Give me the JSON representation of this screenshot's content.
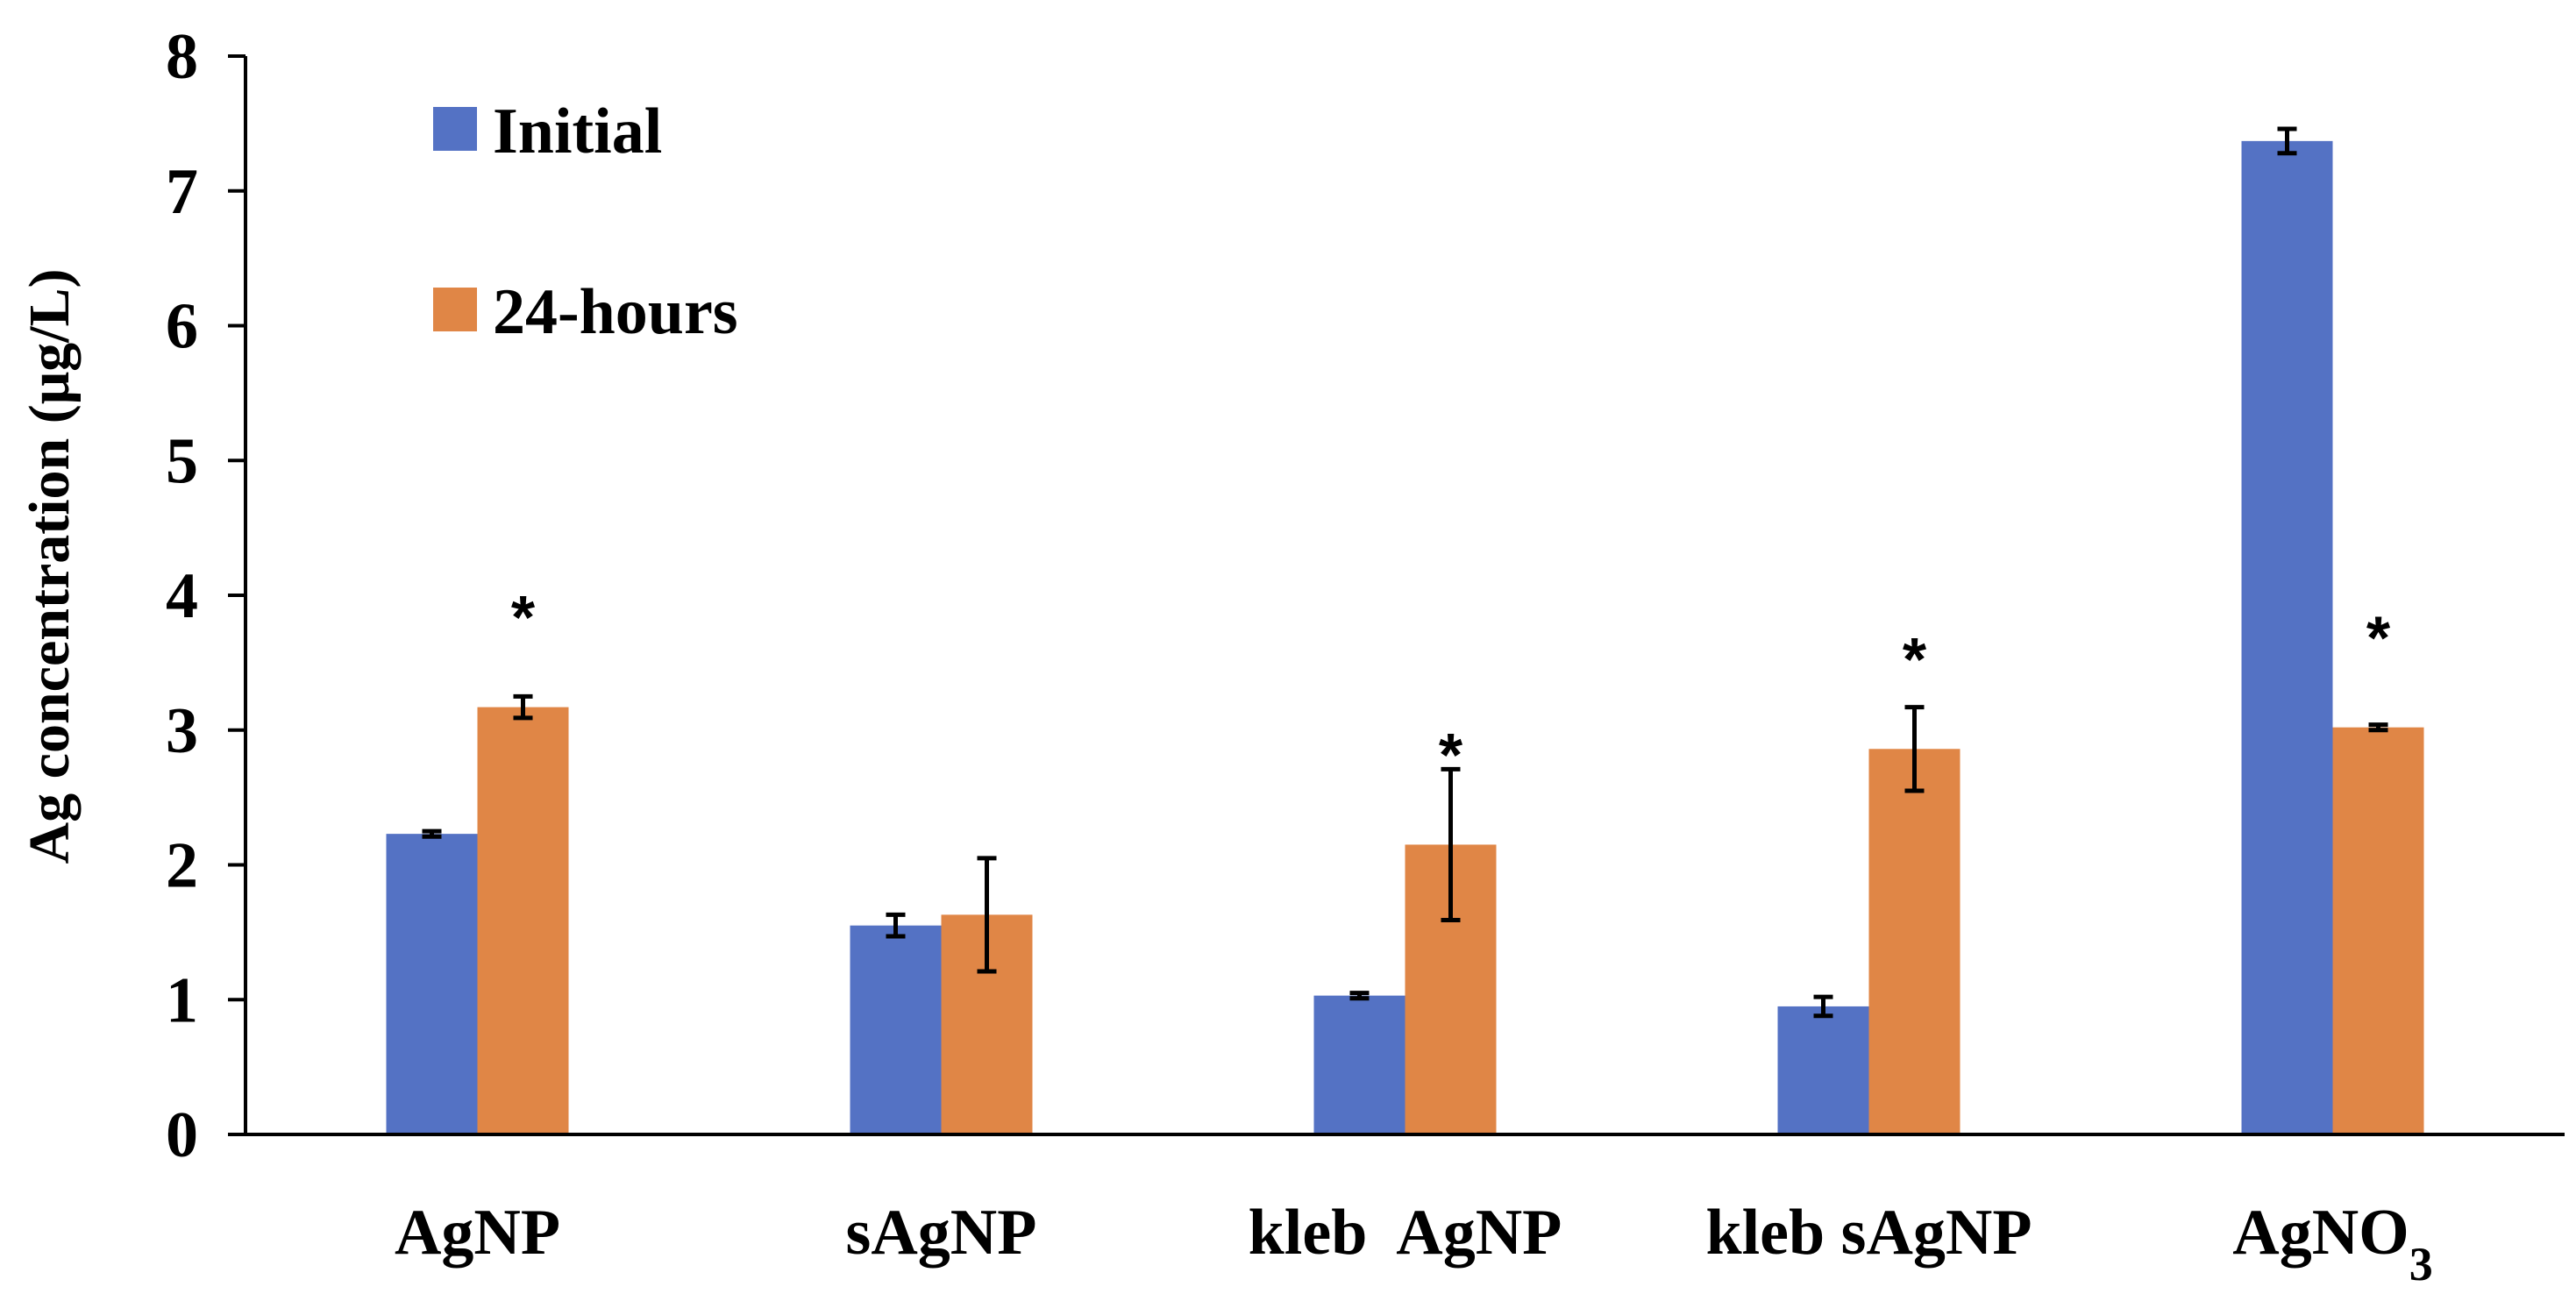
{
  "chart_data": {
    "type": "bar",
    "title": "",
    "xlabel": "",
    "ylabel": "Ag concentration (μg/L)",
    "ylim": [
      0,
      8
    ],
    "yticks": [
      0,
      1,
      2,
      3,
      4,
      5,
      6,
      7,
      8
    ],
    "grid": false,
    "legend": "top-left",
    "categories": [
      {
        "label": "AgNP",
        "subscript": ""
      },
      {
        "label": "sAgNP",
        "subscript": ""
      },
      {
        "label": "kleb  AgNP",
        "subscript": ""
      },
      {
        "label": "kleb sAgNP",
        "subscript": ""
      },
      {
        "label": "AgNO",
        "subscript": "3"
      }
    ],
    "series": [
      {
        "name": "Initial",
        "color": "#5472c4",
        "values": [
          2.23,
          1.55,
          1.03,
          0.95,
          7.37
        ],
        "errors": [
          0.02,
          0.08,
          0.02,
          0.07,
          0.09
        ]
      },
      {
        "name": "24-hours",
        "color": "#e08646",
        "values": [
          3.17,
          1.63,
          2.15,
          2.86,
          3.02
        ],
        "errors": [
          0.08,
          0.42,
          0.56,
          0.31,
          0.02
        ]
      }
    ],
    "annotations": [
      {
        "category": 0,
        "series": 1,
        "text": "*"
      },
      {
        "category": 2,
        "series": 1,
        "text": "*"
      },
      {
        "category": 3,
        "series": 1,
        "text": "*"
      },
      {
        "category": 4,
        "series": 1,
        "text": "*"
      }
    ]
  }
}
